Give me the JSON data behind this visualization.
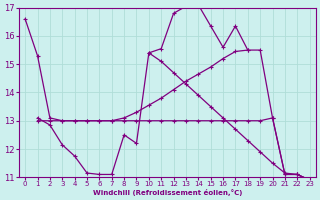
{
  "xlabel": "Windchill (Refroidissement éolien,°C)",
  "line_color": "#800080",
  "bg_color": "#cdf0ee",
  "grid_color": "#b0ddd8",
  "xlim": [
    -0.5,
    23.5
  ],
  "ylim": [
    11,
    17
  ],
  "xticks": [
    0,
    1,
    2,
    3,
    4,
    5,
    6,
    7,
    8,
    9,
    10,
    11,
    12,
    13,
    14,
    15,
    16,
    17,
    18,
    19,
    20,
    21,
    22,
    23
  ],
  "yticks": [
    11,
    12,
    13,
    14,
    15,
    16,
    17
  ],
  "series": [
    {
      "x": [
        0,
        1,
        2,
        3,
        4,
        5,
        6,
        7,
        8,
        9,
        10,
        11,
        12,
        13,
        14,
        15,
        16,
        17,
        18,
        19,
        20,
        21,
        22,
        23
      ],
      "y": [
        16.6,
        15.3,
        13.1,
        13.0,
        13.0,
        13.0,
        13.0,
        13.0,
        13.0,
        13.0,
        13.0,
        13.0,
        13.0,
        13.0,
        13.0,
        13.0,
        13.0,
        13.0,
        13.0,
        13.0,
        13.1,
        11.1,
        11.1,
        10.9
      ]
    },
    {
      "x": [
        1,
        2,
        3,
        4,
        5,
        6,
        7,
        8,
        9,
        10,
        11,
        12,
        13,
        14,
        15,
        16,
        17,
        18
      ],
      "y": [
        13.1,
        12.85,
        12.15,
        11.75,
        11.15,
        11.1,
        11.1,
        12.5,
        12.2,
        15.4,
        15.55,
        16.8,
        17.05,
        17.1,
        16.35,
        15.6,
        16.35,
        15.5
      ]
    },
    {
      "x": [
        1,
        2,
        3,
        4,
        5,
        6,
        7,
        8,
        9,
        10,
        11,
        12,
        13,
        14,
        15,
        16,
        17,
        18,
        19,
        20,
        21,
        22,
        23
      ],
      "y": [
        13.0,
        13.0,
        13.0,
        13.0,
        13.0,
        13.0,
        13.0,
        13.1,
        13.3,
        13.55,
        13.8,
        14.1,
        14.4,
        14.65,
        14.9,
        15.2,
        15.45,
        15.5,
        15.5,
        13.1,
        11.1,
        11.1,
        10.9
      ]
    },
    {
      "x": [
        10,
        11,
        12,
        13,
        14,
        15,
        16,
        17,
        18,
        19,
        20,
        21,
        22,
        23
      ],
      "y": [
        15.4,
        15.1,
        14.7,
        14.3,
        13.9,
        13.5,
        13.1,
        12.7,
        12.3,
        11.9,
        11.5,
        11.15,
        11.1,
        10.9
      ]
    }
  ]
}
